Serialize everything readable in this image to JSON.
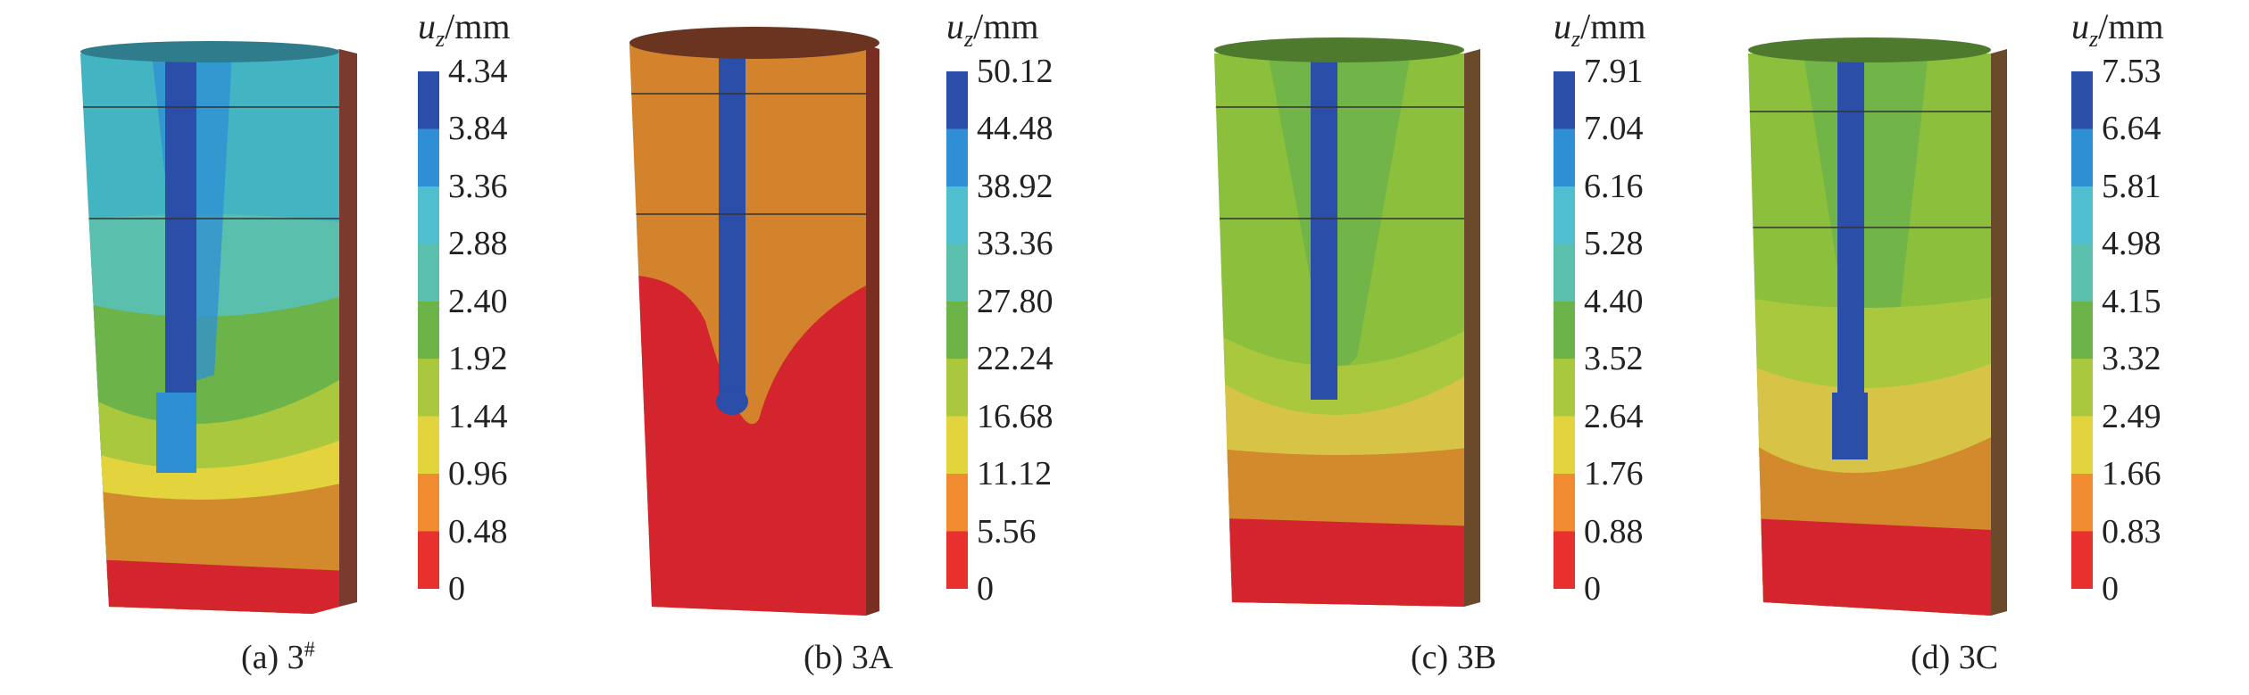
{
  "unit_symbol": "u",
  "unit_subscript": "z",
  "unit_suffix": "/mm",
  "panels": [
    {
      "caption_prefix": "(a) 3",
      "caption_sup": "#",
      "caption_suffix": "",
      "ticks": [
        "4.34",
        "3.84",
        "3.36",
        "2.88",
        "2.40",
        "1.92",
        "1.44",
        "0.96",
        "0.48",
        "0"
      ],
      "top_color": "#43b4c2"
    },
    {
      "caption_prefix": "(b) 3A",
      "caption_sup": "",
      "caption_suffix": "",
      "ticks": [
        "50.12",
        "44.48",
        "38.92",
        "33.36",
        "27.80",
        "22.24",
        "16.68",
        "11.12",
        "5.56",
        "0"
      ],
      "top_color": "#d2832c"
    },
    {
      "caption_prefix": "(c) 3B",
      "caption_sup": "",
      "caption_suffix": "",
      "ticks": [
        "7.91",
        "7.04",
        "6.16",
        "5.28",
        "4.40",
        "3.52",
        "2.64",
        "1.76",
        "0.88",
        "0"
      ],
      "top_color": "#8cbf3c"
    },
    {
      "caption_prefix": "(d) 3C",
      "caption_sup": "",
      "caption_suffix": "",
      "ticks": [
        "7.53",
        "6.64",
        "5.81",
        "4.98",
        "4.15",
        "3.32",
        "2.49",
        "1.66",
        "0.83",
        "0"
      ],
      "top_color": "#8cbf3c"
    }
  ],
  "colors": {
    "legend_top_to_bottom": [
      "#2b4ea8",
      "#2f8fd4",
      "#4fbfcf",
      "#5bbfae",
      "#6cb34a",
      "#a9c83d",
      "#e3d43d",
      "#f08b30",
      "#e8302c"
    ]
  }
}
